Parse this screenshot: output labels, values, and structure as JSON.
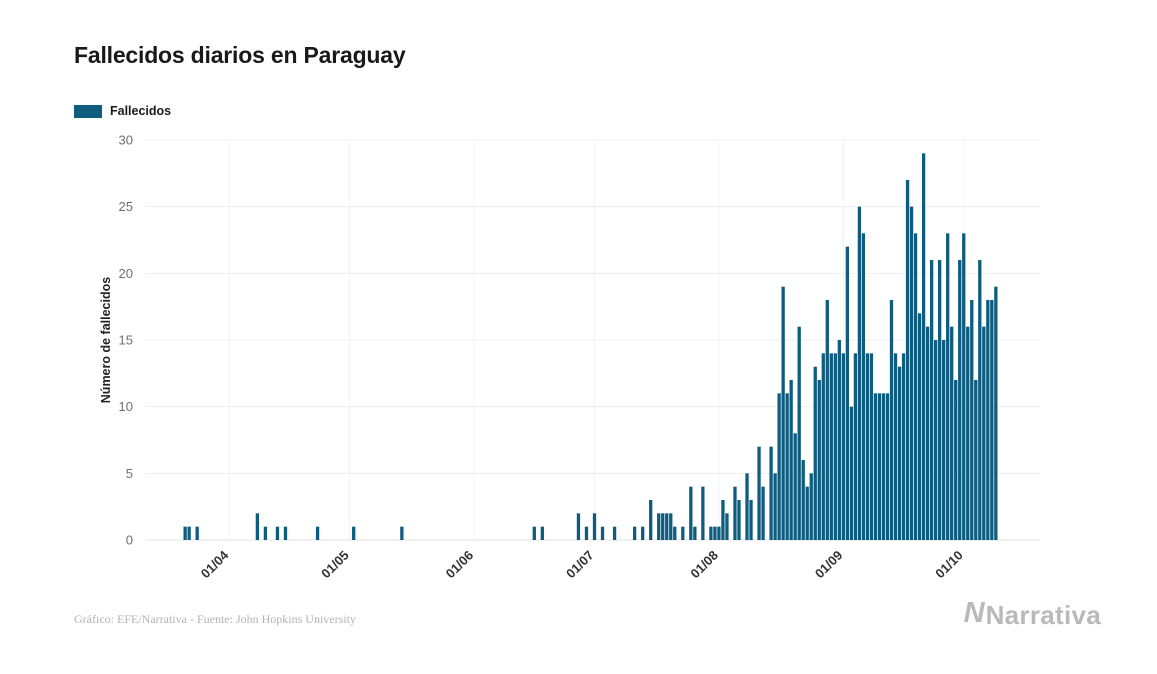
{
  "chart": {
    "title": "Fallecidos diarios en Paraguay",
    "legend_label": "Fallecidos",
    "ylabel": "Número de fallecidos"
  },
  "footer": {
    "source": "Gráfico: EFE/Narrativa - Fuente: John Hopkins University",
    "logo_mark": "N",
    "logo_text": "Narrativa"
  },
  "chart_data": {
    "type": "bar",
    "title": "Fallecidos diarios en Paraguay",
    "series_name": "Fallecidos",
    "color": "#0e5c7e",
    "xlabel": "",
    "ylabel": "Número de fallecidos",
    "ylim": [
      0,
      30
    ],
    "y_ticks": [
      0,
      5,
      10,
      15,
      20,
      25,
      30
    ],
    "grid": true,
    "legend_position": "top-left",
    "x_axis_start": "2020-03-11",
    "x_axis_end": "2020-10-20",
    "x_tick_dates": [
      "2020-04-01",
      "2020-05-01",
      "2020-06-01",
      "2020-07-01",
      "2020-08-01",
      "2020-09-01",
      "2020-10-01"
    ],
    "x_tick_labels": [
      "01/04",
      "01/05",
      "01/06",
      "01/07",
      "01/08",
      "01/09",
      "01/10"
    ],
    "points": [
      [
        "2020-03-21",
        1
      ],
      [
        "2020-03-22",
        1
      ],
      [
        "2020-03-24",
        1
      ],
      [
        "2020-04-08",
        2
      ],
      [
        "2020-04-10",
        1
      ],
      [
        "2020-04-13",
        1
      ],
      [
        "2020-04-15",
        1
      ],
      [
        "2020-04-23",
        1
      ],
      [
        "2020-05-02",
        1
      ],
      [
        "2020-05-14",
        1
      ],
      [
        "2020-06-16",
        1
      ],
      [
        "2020-06-18",
        1
      ],
      [
        "2020-06-27",
        2
      ],
      [
        "2020-06-29",
        1
      ],
      [
        "2020-07-01",
        2
      ],
      [
        "2020-07-03",
        1
      ],
      [
        "2020-07-06",
        1
      ],
      [
        "2020-07-11",
        1
      ],
      [
        "2020-07-13",
        1
      ],
      [
        "2020-07-15",
        3
      ],
      [
        "2020-07-17",
        2
      ],
      [
        "2020-07-18",
        2
      ],
      [
        "2020-07-19",
        2
      ],
      [
        "2020-07-20",
        2
      ],
      [
        "2020-07-21",
        1
      ],
      [
        "2020-07-23",
        1
      ],
      [
        "2020-07-25",
        4
      ],
      [
        "2020-07-26",
        1
      ],
      [
        "2020-07-28",
        4
      ],
      [
        "2020-07-30",
        1
      ],
      [
        "2020-07-31",
        1
      ],
      [
        "2020-08-01",
        1
      ],
      [
        "2020-08-02",
        3
      ],
      [
        "2020-08-03",
        2
      ],
      [
        "2020-08-05",
        4
      ],
      [
        "2020-08-06",
        3
      ],
      [
        "2020-08-08",
        5
      ],
      [
        "2020-08-09",
        3
      ],
      [
        "2020-08-11",
        7
      ],
      [
        "2020-08-12",
        4
      ],
      [
        "2020-08-14",
        7
      ],
      [
        "2020-08-15",
        5
      ],
      [
        "2020-08-16",
        11
      ],
      [
        "2020-08-17",
        19
      ],
      [
        "2020-08-18",
        11
      ],
      [
        "2020-08-19",
        12
      ],
      [
        "2020-08-20",
        8
      ],
      [
        "2020-08-21",
        16
      ],
      [
        "2020-08-22",
        6
      ],
      [
        "2020-08-23",
        4
      ],
      [
        "2020-08-24",
        5
      ],
      [
        "2020-08-25",
        13
      ],
      [
        "2020-08-26",
        12
      ],
      [
        "2020-08-27",
        14
      ],
      [
        "2020-08-28",
        18
      ],
      [
        "2020-08-29",
        14
      ],
      [
        "2020-08-30",
        14
      ],
      [
        "2020-08-31",
        15
      ],
      [
        "2020-09-01",
        14
      ],
      [
        "2020-09-02",
        22
      ],
      [
        "2020-09-03",
        10
      ],
      [
        "2020-09-04",
        14
      ],
      [
        "2020-09-05",
        25
      ],
      [
        "2020-09-06",
        23
      ],
      [
        "2020-09-07",
        14
      ],
      [
        "2020-09-08",
        14
      ],
      [
        "2020-09-09",
        11
      ],
      [
        "2020-09-10",
        11
      ],
      [
        "2020-09-11",
        11
      ],
      [
        "2020-09-12",
        11
      ],
      [
        "2020-09-13",
        18
      ],
      [
        "2020-09-14",
        14
      ],
      [
        "2020-09-15",
        13
      ],
      [
        "2020-09-16",
        14
      ],
      [
        "2020-09-17",
        27
      ],
      [
        "2020-09-18",
        25
      ],
      [
        "2020-09-19",
        23
      ],
      [
        "2020-09-20",
        17
      ],
      [
        "2020-09-21",
        29
      ],
      [
        "2020-09-22",
        16
      ],
      [
        "2020-09-23",
        21
      ],
      [
        "2020-09-24",
        15
      ],
      [
        "2020-09-25",
        21
      ],
      [
        "2020-09-26",
        15
      ],
      [
        "2020-09-27",
        23
      ],
      [
        "2020-09-28",
        16
      ],
      [
        "2020-09-29",
        12
      ],
      [
        "2020-09-30",
        21
      ],
      [
        "2020-10-01",
        23
      ],
      [
        "2020-10-02",
        16
      ],
      [
        "2020-10-03",
        18
      ],
      [
        "2020-10-04",
        12
      ],
      [
        "2020-10-05",
        21
      ],
      [
        "2020-10-06",
        16
      ],
      [
        "2020-10-07",
        18
      ],
      [
        "2020-10-08",
        18
      ],
      [
        "2020-10-09",
        19
      ]
    ]
  }
}
